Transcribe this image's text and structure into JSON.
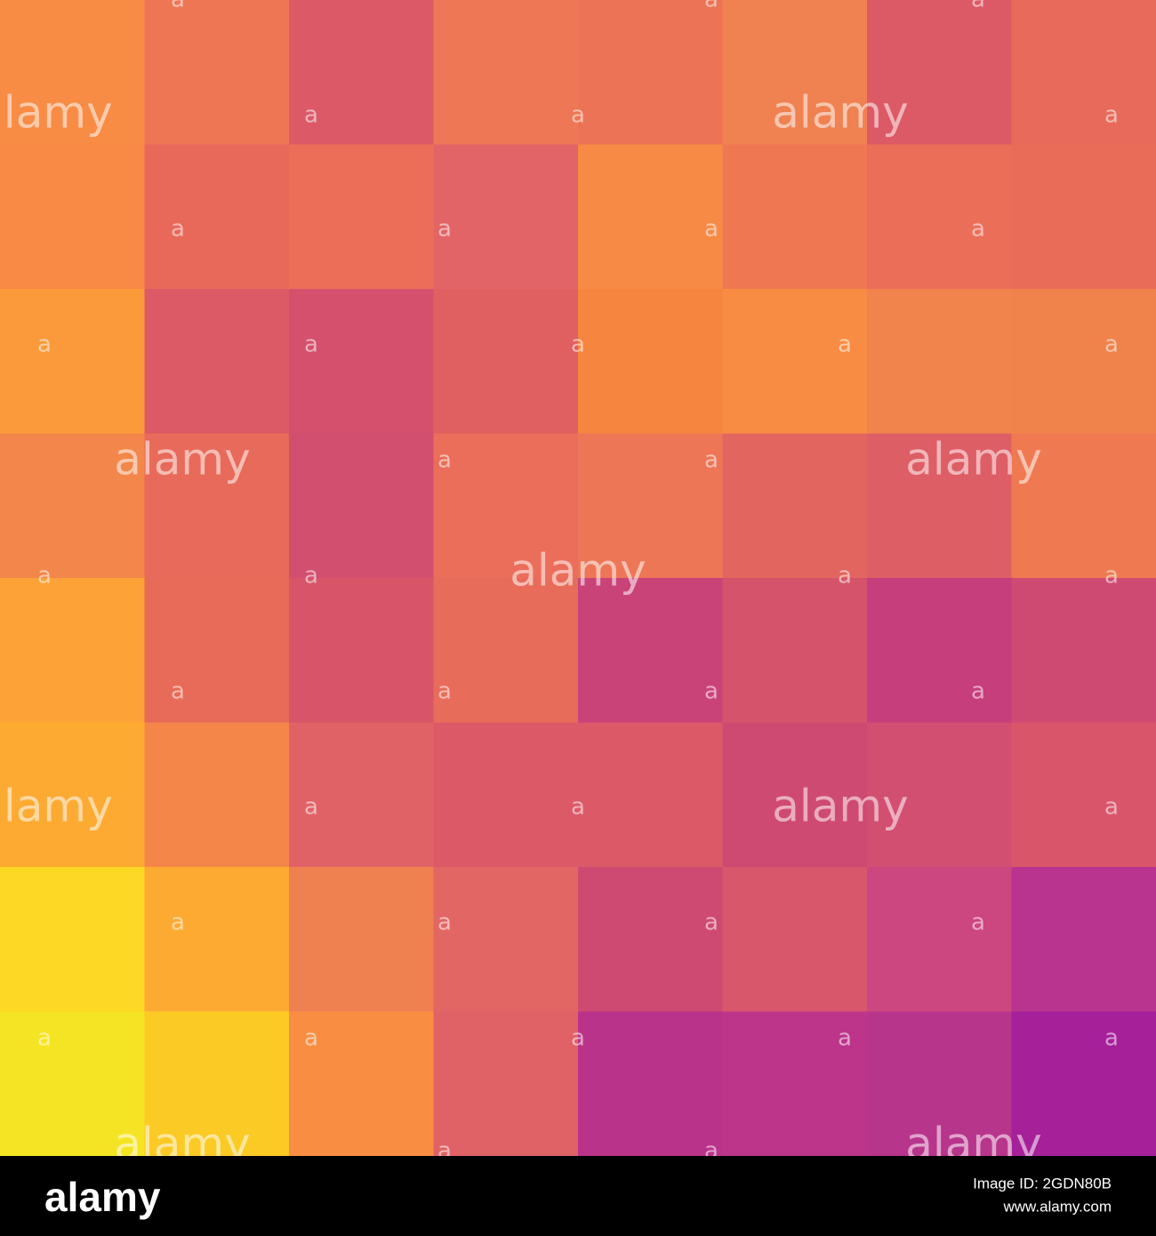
{
  "image": {
    "cells": [
      [
        "#f98c45",
        "#ee7655",
        "#dc5a68",
        "#ee7855",
        "#ec7356",
        "#f08150",
        "#dc5a66",
        "#e86a5a"
      ],
      [
        "#f98a45",
        "#e8685a",
        "#ec6e58",
        "#e26466",
        "#f78a45",
        "#ef7853",
        "#eb6e59",
        "#e96c58"
      ],
      [
        "#fb9a3a",
        "#dc5a66",
        "#d4506c",
        "#e06062",
        "#f5853f",
        "#f98c43",
        "#f0844c",
        "#f0824c"
      ],
      [
        "#f3864a",
        "#e86a5a",
        "#d24f70",
        "#ea6e5a",
        "#ed7657",
        "#e26560",
        "#de5e66",
        "#ef7a52"
      ],
      [
        "#fca236",
        "#e86a58",
        "#d75469",
        "#e86c5a",
        "#c94378",
        "#d6546b",
        "#c63f7c",
        "#cf4a72"
      ],
      [
        "#fdaa33",
        "#f5864a",
        "#e06266",
        "#dc5a68",
        "#dc5a68",
        "#cf4a72",
        "#d24f72",
        "#d9566a"
      ],
      [
        "#fdd824",
        "#fdaa33",
        "#ef804f",
        "#e26664",
        "#cf4a73",
        "#d9576a",
        "#cc4680",
        "#b8348e"
      ],
      [
        "#f5e423",
        "#fbca25",
        "#f98e43",
        "#e06266",
        "#ba338a",
        "#bc358a",
        "#b8358c",
        "#a6209a"
      ]
    ]
  },
  "watermark": {
    "logo": "alamy",
    "mark": "a"
  },
  "footer": {
    "logo": "alamy",
    "image_id": "Image ID: 2GDN80B",
    "url": "www.alamy.com"
  }
}
